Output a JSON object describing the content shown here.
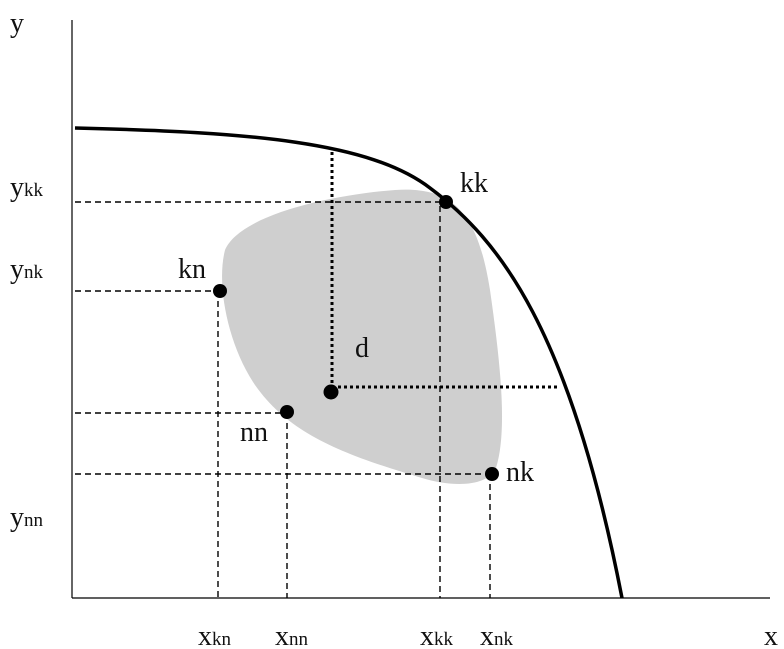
{
  "axes": {
    "x_label": "x",
    "y_label": "y"
  },
  "x_ticks": [
    {
      "id": "kn",
      "main": "x",
      "sub": "kn"
    },
    {
      "id": "nn",
      "main": "x",
      "sub": "nn"
    },
    {
      "id": "kk",
      "main": "x",
      "sub": "kk"
    },
    {
      "id": "nk",
      "main": "x",
      "sub": "nk"
    }
  ],
  "y_ticks": [
    {
      "id": "kk",
      "main": "y",
      "sub": "kk"
    },
    {
      "id": "nk",
      "main": "y",
      "sub": "nk"
    },
    {
      "id": "nn",
      "main": "y",
      "sub": "nn"
    }
  ],
  "points": [
    {
      "id": "kk",
      "label": "kk"
    },
    {
      "id": "kn",
      "label": "kn"
    },
    {
      "id": "d",
      "label": "d"
    },
    {
      "id": "nn",
      "label": "nn"
    },
    {
      "id": "nk",
      "label": "nk"
    }
  ],
  "colors": {
    "region_fill": "#cfcfcf",
    "line": "#000000"
  }
}
